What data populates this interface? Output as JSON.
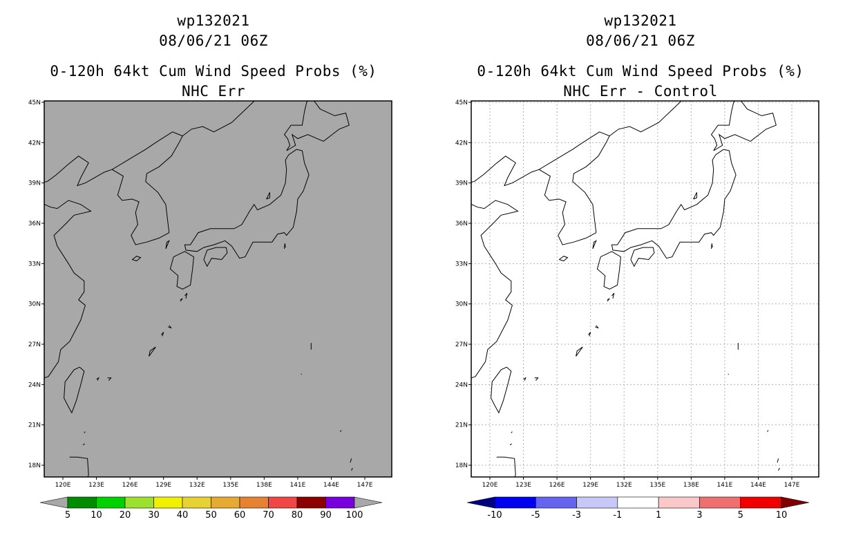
{
  "left_panel": {
    "title_line1": "wp132021",
    "title_line2": "08/06/21 06Z",
    "title_line3": "0-120h 64kt Cum Wind Speed Probs (%)",
    "title_line4": "NHC Err",
    "map_fill_color": "#a8a8a8",
    "gridlines": false,
    "colorbar": {
      "labels": [
        "5",
        "10",
        "20",
        "30",
        "40",
        "50",
        "60",
        "70",
        "80",
        "90",
        "100"
      ],
      "colors": [
        "#a8a8a8",
        "#008c00",
        "#00d200",
        "#9be12d",
        "#f0f000",
        "#e6d232",
        "#e6aa32",
        "#e68232",
        "#f04646",
        "#8c0000",
        "#7800dc",
        "#a8a8a8"
      ]
    }
  },
  "right_panel": {
    "title_line1": "wp132021",
    "title_line2": "08/06/21 06Z",
    "title_line3": "0-120h 64kt Cum Wind Speed Probs (%)",
    "title_line4": "NHC Err - Control",
    "map_fill_color": "#ffffff",
    "gridlines": true,
    "colorbar": {
      "labels": [
        "-10",
        "-5",
        "-3",
        "-1",
        "1",
        "3",
        "5",
        "10"
      ],
      "colors": [
        "#000080",
        "#0000f0",
        "#6464f0",
        "#c8c8f8",
        "#ffffff",
        "#fac8c8",
        "#f07070",
        "#f00000",
        "#800000"
      ]
    }
  },
  "axes": {
    "lon_labels": [
      "120E",
      "123E",
      "126E",
      "129E",
      "132E",
      "135E",
      "138E",
      "141E",
      "144E",
      "147E"
    ],
    "lat_labels": [
      "45N",
      "42N",
      "39N",
      "36N",
      "33N",
      "30N",
      "27N",
      "24N",
      "21N",
      "18N"
    ]
  }
}
